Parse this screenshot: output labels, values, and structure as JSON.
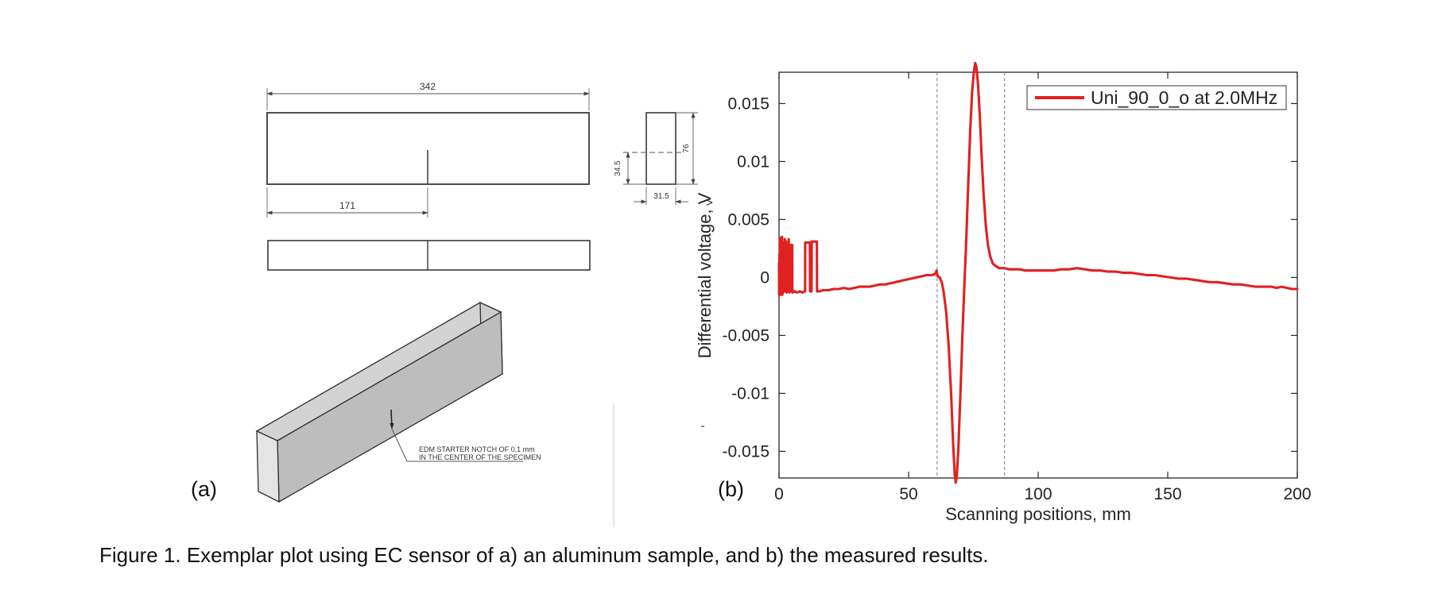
{
  "figure": {
    "panel_a_label": "(a)",
    "panel_b_label": "(b)",
    "caption": "Figure 1. Exemplar plot using EC sensor of a) an aluminum sample, and b) the measured results."
  },
  "drawing": {
    "dim_total_length": "342",
    "dim_half_length": "171",
    "dim_notch_depth": "34.5",
    "dim_height": "76",
    "dim_thickness": "31.5",
    "note_line1": "EDM STARTER NOTCH OF 0.1 mm",
    "note_line2": "IN THE CENTER OF THE SPECIMEN",
    "artifact_chevron": ">"
  },
  "chart_data": {
    "type": "line",
    "title": "",
    "xlabel": "Scanning positions, mm",
    "ylabel": "Differential voltage, V",
    "xlim": [
      0,
      200
    ],
    "ylim": [
      -0.0173,
      0.0177
    ],
    "x_ticks": [
      0,
      50,
      100,
      150,
      200
    ],
    "x_tick_labels": [
      "0",
      "50",
      "100",
      "150",
      "200"
    ],
    "y_ticks": [
      -0.015,
      -0.01,
      -0.005,
      0,
      0.005,
      0.01,
      0.015
    ],
    "y_tick_labels": [
      "-0.015",
      "-0.01",
      "-0.005",
      "0",
      "0.005",
      "0.01",
      "0.015"
    ],
    "grid": false,
    "legend_position": "top-right",
    "axis_color": "#262626",
    "vlines": {
      "x": [
        61,
        87
      ],
      "style": "dashed",
      "color": "#8490ad"
    },
    "series": [
      {
        "name": "Uni_90_0_o at 2.0MHz",
        "color": "#df2121",
        "points": [
          [
            0,
            0.0012
          ],
          [
            0.05,
            -0.0015
          ],
          [
            0.15,
            0.002
          ],
          [
            0.25,
            -0.0013
          ],
          [
            0.35,
            0.0034
          ],
          [
            0.45,
            -0.0015
          ],
          [
            0.55,
            0.0018
          ],
          [
            0.65,
            -0.0012
          ],
          [
            0.75,
            0.0033
          ],
          [
            0.85,
            -0.0014
          ],
          [
            0.95,
            0.0022
          ],
          [
            1.05,
            -0.0011
          ],
          [
            1.15,
            0.0035
          ],
          [
            1.3,
            -0.0015
          ],
          [
            1.45,
            0.003
          ],
          [
            1.6,
            -0.0013
          ],
          [
            1.8,
            0.0024
          ],
          [
            2.0,
            -0.0012
          ],
          [
            2.2,
            0.0033
          ],
          [
            2.4,
            -0.0012
          ],
          [
            2.7,
            0.0031
          ],
          [
            2.9,
            -0.0013
          ],
          [
            3.1,
            0.002
          ],
          [
            3.4,
            -0.0012
          ],
          [
            3.7,
            0.0033
          ],
          [
            3.95,
            -0.0013
          ],
          [
            4.3,
            -0.0012
          ],
          [
            4.35,
            0.0028
          ],
          [
            5.1,
            0.0028
          ],
          [
            5.15,
            -0.0013
          ],
          [
            6,
            -0.0012
          ],
          [
            7,
            -0.0013
          ],
          [
            8,
            -0.0012
          ],
          [
            9,
            -0.0013
          ],
          [
            10.05,
            -0.0012
          ],
          [
            10.1,
            0.003
          ],
          [
            11.9,
            0.003
          ],
          [
            11.95,
            -0.0012
          ],
          [
            12.55,
            -0.0012
          ],
          [
            12.6,
            0.0031
          ],
          [
            14.6,
            0.0031
          ],
          [
            14.65,
            -0.0012
          ],
          [
            15.5,
            -0.0012
          ],
          [
            17,
            -0.0011
          ],
          [
            19,
            -0.0011
          ],
          [
            21,
            -0.001
          ],
          [
            23,
            -0.001
          ],
          [
            25,
            -0.0009
          ],
          [
            27,
            -0.001
          ],
          [
            29,
            -0.0009
          ],
          [
            31,
            -0.0008
          ],
          [
            33,
            -0.0008
          ],
          [
            35,
            -0.0008
          ],
          [
            37,
            -0.0007
          ],
          [
            39,
            -0.0006
          ],
          [
            41,
            -0.0006
          ],
          [
            43,
            -0.0005
          ],
          [
            45,
            -0.0004
          ],
          [
            47,
            -0.0003
          ],
          [
            49,
            -0.0002
          ],
          [
            51,
            -0.0001
          ],
          [
            53,
            0
          ],
          [
            55,
            0.0001
          ],
          [
            57,
            0.0002
          ],
          [
            59,
            0.0002
          ],
          [
            60.3,
            0.0003
          ],
          [
            60.8,
            0.0006
          ],
          [
            61.2,
            0.0001
          ],
          [
            62,
            0
          ],
          [
            62.8,
            -0.0004
          ],
          [
            63.5,
            -0.0012
          ],
          [
            64.5,
            -0.003
          ],
          [
            65.5,
            -0.006
          ],
          [
            66.5,
            -0.0105
          ],
          [
            67.2,
            -0.0145
          ],
          [
            67.8,
            -0.017
          ],
          [
            68.2,
            -0.0177
          ],
          [
            68.6,
            -0.0172
          ],
          [
            69.2,
            -0.0148
          ],
          [
            70,
            -0.01
          ],
          [
            70.8,
            -0.0048
          ],
          [
            71.5,
            -0.0008
          ],
          [
            72.2,
            0.003
          ],
          [
            73,
            0.008
          ],
          [
            73.8,
            0.0128
          ],
          [
            74.5,
            0.016
          ],
          [
            75.2,
            0.0178
          ],
          [
            75.7,
            0.0185
          ],
          [
            76.2,
            0.0181
          ],
          [
            76.8,
            0.0166
          ],
          [
            77.5,
            0.0138
          ],
          [
            78.2,
            0.0104
          ],
          [
            79,
            0.007
          ],
          [
            79.8,
            0.0045
          ],
          [
            80.6,
            0.0028
          ],
          [
            81.5,
            0.0018
          ],
          [
            82.5,
            0.0012
          ],
          [
            83.5,
            0.001
          ],
          [
            85,
            0.0008
          ],
          [
            87,
            0.0008
          ],
          [
            89,
            0.0007
          ],
          [
            91,
            0.0007
          ],
          [
            93,
            0.0007
          ],
          [
            95,
            0.0006
          ],
          [
            97,
            0.0006
          ],
          [
            100,
            0.0006
          ],
          [
            103,
            0.0006
          ],
          [
            106,
            0.0006
          ],
          [
            109,
            0.0007
          ],
          [
            112,
            0.0007
          ],
          [
            115,
            0.0008
          ],
          [
            118,
            0.0007
          ],
          [
            121,
            0.0006
          ],
          [
            124,
            0.0006
          ],
          [
            127,
            0.0005
          ],
          [
            130,
            0.0005
          ],
          [
            133,
            0.0004
          ],
          [
            136,
            0.0004
          ],
          [
            139,
            0.0003
          ],
          [
            142,
            0.0002
          ],
          [
            145,
            0.0002
          ],
          [
            148,
            0.0001
          ],
          [
            151,
            0
          ],
          [
            154,
            -0.0001
          ],
          [
            157,
            -0.0001
          ],
          [
            160,
            -0.0002
          ],
          [
            163,
            -0.0003
          ],
          [
            166,
            -0.0004
          ],
          [
            169,
            -0.0004
          ],
          [
            172,
            -0.0005
          ],
          [
            175,
            -0.0006
          ],
          [
            178,
            -0.0006
          ],
          [
            181,
            -0.0007
          ],
          [
            184,
            -0.0008
          ],
          [
            187,
            -0.0008
          ],
          [
            190,
            -0.0008
          ],
          [
            192,
            -0.0009
          ],
          [
            194,
            -0.0008
          ],
          [
            196,
            -0.0009
          ],
          [
            198,
            -0.001
          ],
          [
            200,
            -0.001
          ]
        ]
      }
    ]
  }
}
